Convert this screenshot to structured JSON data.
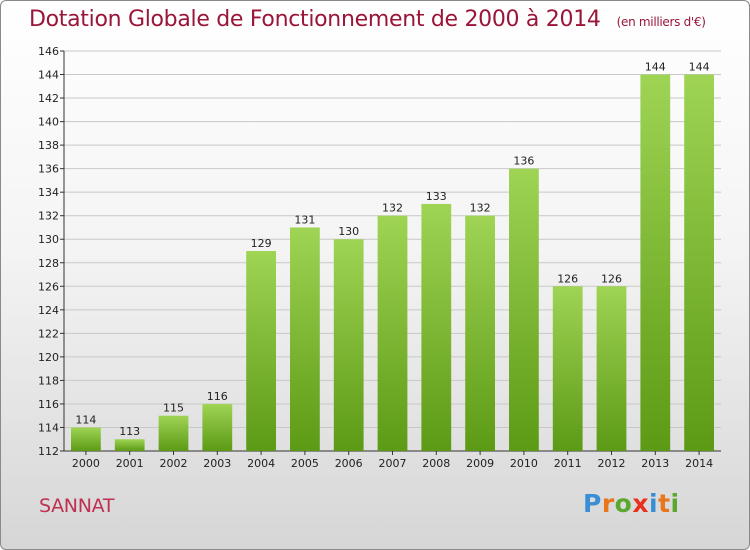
{
  "title": "Dotation Globale de Fonctionnement de 2000 à 2014",
  "subtitle": "(en milliers d'€)",
  "town": "SANNAT",
  "logo": {
    "text": "Proxiti",
    "letter_colors": [
      "#3a8ed6",
      "#e8761d",
      "#5aa82f",
      "#e8311d",
      "#3a8ed6",
      "#e8761d",
      "#5aa82f"
    ]
  },
  "colors": {
    "bar_top": "#9fd454",
    "bar_bottom": "#5c9a15",
    "title": "#9a1538",
    "grid": "#c8c8c8"
  },
  "chart_data": {
    "type": "bar",
    "title": "Dotation Globale de Fonctionnement de 2000 à 2014",
    "xlabel": "",
    "ylabel": "",
    "categories": [
      "2000",
      "2001",
      "2002",
      "2003",
      "2004",
      "2005",
      "2006",
      "2007",
      "2008",
      "2009",
      "2010",
      "2011",
      "2012",
      "2013",
      "2014"
    ],
    "values": [
      114,
      113,
      115,
      116,
      129,
      131,
      130,
      132,
      133,
      132,
      136,
      126,
      126,
      144,
      144
    ],
    "ylim": [
      112,
      146
    ],
    "yticks": [
      112,
      114,
      116,
      118,
      120,
      122,
      124,
      126,
      128,
      130,
      132,
      134,
      136,
      138,
      140,
      142,
      144,
      146
    ],
    "grid": true,
    "legend": "none"
  }
}
